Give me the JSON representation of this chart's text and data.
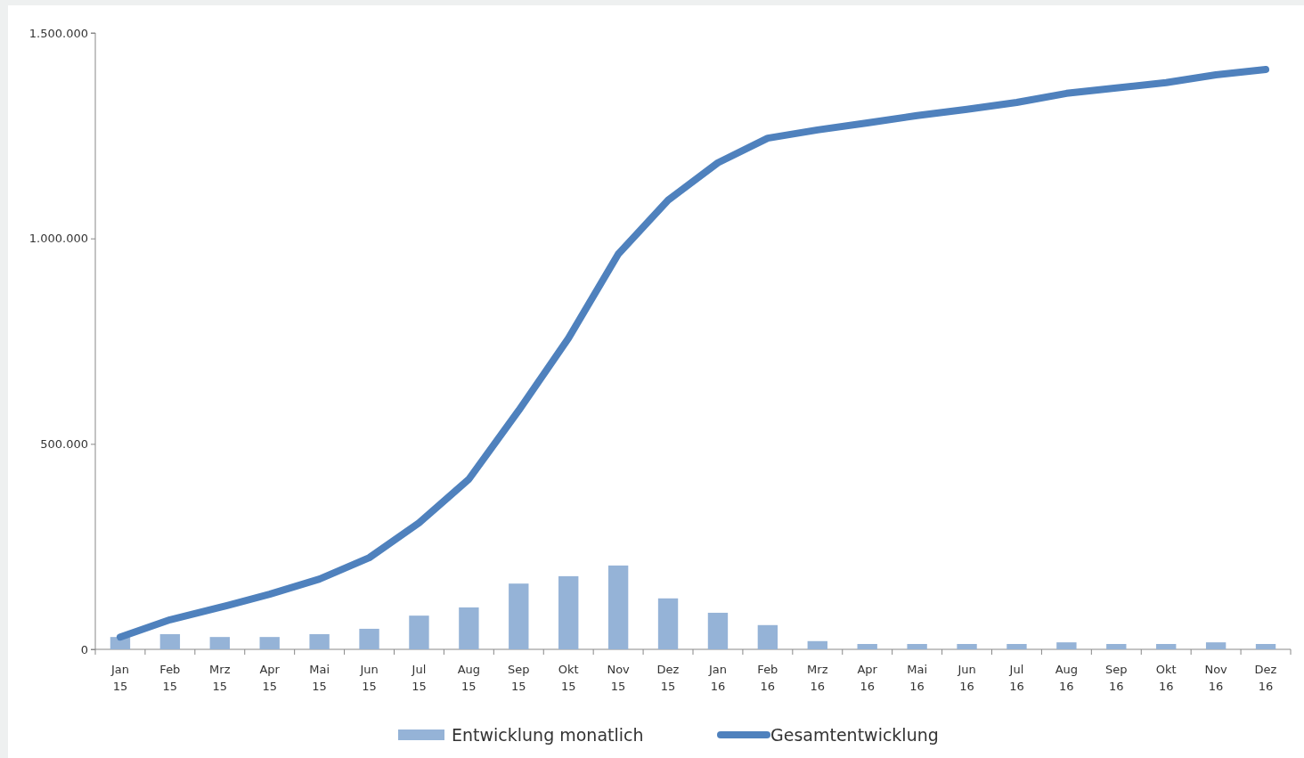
{
  "chart_data": {
    "type": "bar",
    "categories": [
      "Jan 15",
      "Feb 15",
      "Mrz 15",
      "Apr 15",
      "Mai 15",
      "Jun 15",
      "Jul 15",
      "Aug 15",
      "Sep 15",
      "Okt 15",
      "Nov 15",
      "Dez 15",
      "Jan 16",
      "Feb 16",
      "Mrz 16",
      "Apr 16",
      "Mai 16",
      "Jun 16",
      "Jul 16",
      "Aug 16",
      "Sep 16",
      "Okt 16",
      "Nov 16",
      "Dez 16"
    ],
    "series": [
      {
        "name": "Entwicklung monatlich",
        "color": "#95b3d7",
        "values": [
          30000,
          37000,
          30000,
          30000,
          37000,
          50000,
          82000,
          102000,
          160000,
          178000,
          204000,
          124000,
          89000,
          59000,
          20000,
          13000,
          13000,
          13000,
          13000,
          17000,
          13000,
          13000,
          17000,
          13000
        ]
      },
      {
        "name": "Gesamtentwicklung",
        "type": "line",
        "color": "#4f81bd",
        "values": [
          30000,
          72000,
          102000,
          134000,
          171000,
          223000,
          308000,
          414000,
          581000,
          757000,
          962000,
          1093000,
          1184000,
          1244000,
          1264000,
          1281000,
          1299000,
          1314000,
          1331000,
          1353000,
          1366000,
          1379000,
          1398000,
          1411000
        ]
      }
    ],
    "ylim": [
      0,
      1500000
    ],
    "yticks": [
      {
        "value": 0,
        "label": "0"
      },
      {
        "value": 500000,
        "label": "500.000"
      },
      {
        "value": 1000000,
        "label": "1.000.000"
      },
      {
        "value": 1500000,
        "label": "1.500.000"
      }
    ],
    "grid": false,
    "legend": "bottom",
    "marker": "none",
    "line_style": "solid"
  }
}
